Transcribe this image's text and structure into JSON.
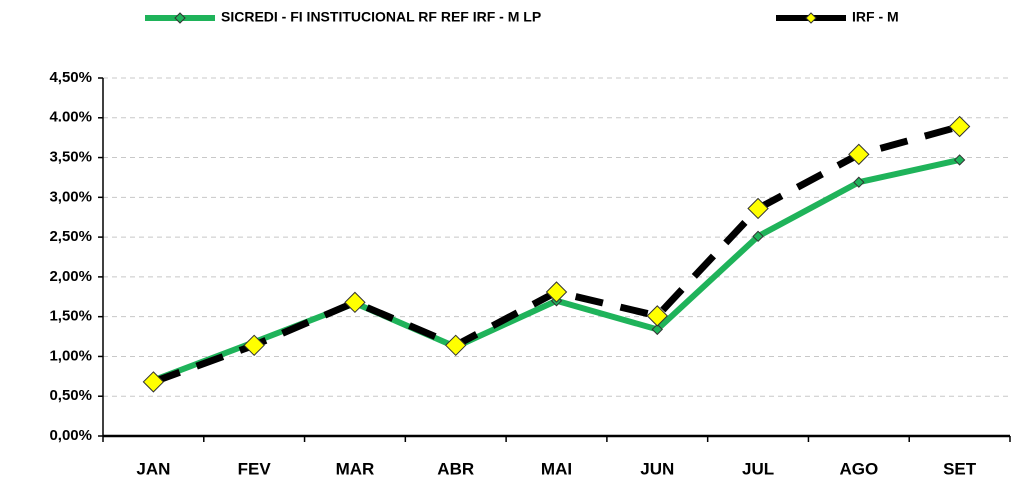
{
  "chart_data": {
    "type": "line",
    "categories": [
      "JAN",
      "FEV",
      "MAR",
      "ABR",
      "MAI",
      "JUN",
      "JUL",
      "AGO",
      "SET"
    ],
    "series": [
      {
        "name": "SICREDI - FI INSTITUCIONAL RF REF IRF - M LP",
        "color": "#1fb35a",
        "marker_color": "#1fb35a",
        "dashed": false,
        "values": [
          0.7,
          1.18,
          1.67,
          1.12,
          1.7,
          1.34,
          2.51,
          3.19,
          3.47
        ]
      },
      {
        "name": "IRF - M",
        "color": "#000000",
        "marker_color": "#ffff00",
        "dashed": true,
        "values": [
          0.68,
          1.14,
          1.68,
          1.14,
          1.81,
          1.51,
          2.86,
          3.54,
          3.89
        ]
      }
    ],
    "ylim": [
      0,
      4.5
    ],
    "yticks": [
      {
        "value": 0,
        "label": "0,00%"
      },
      {
        "value": 0.5,
        "label": "0,50%"
      },
      {
        "value": 1,
        "label": "1,00%"
      },
      {
        "value": 1.5,
        "label": "1,50%"
      },
      {
        "value": 2,
        "label": "2,00%"
      },
      {
        "value": 2.5,
        "label": "2,50%"
      },
      {
        "value": 3,
        "label": "3,00%"
      },
      {
        "value": 3.5,
        "label": "3,50%"
      },
      {
        "value": 4,
        "label": "4.00%"
      },
      {
        "value": 4.5,
        "label": "4,50%"
      }
    ],
    "grid": true
  }
}
